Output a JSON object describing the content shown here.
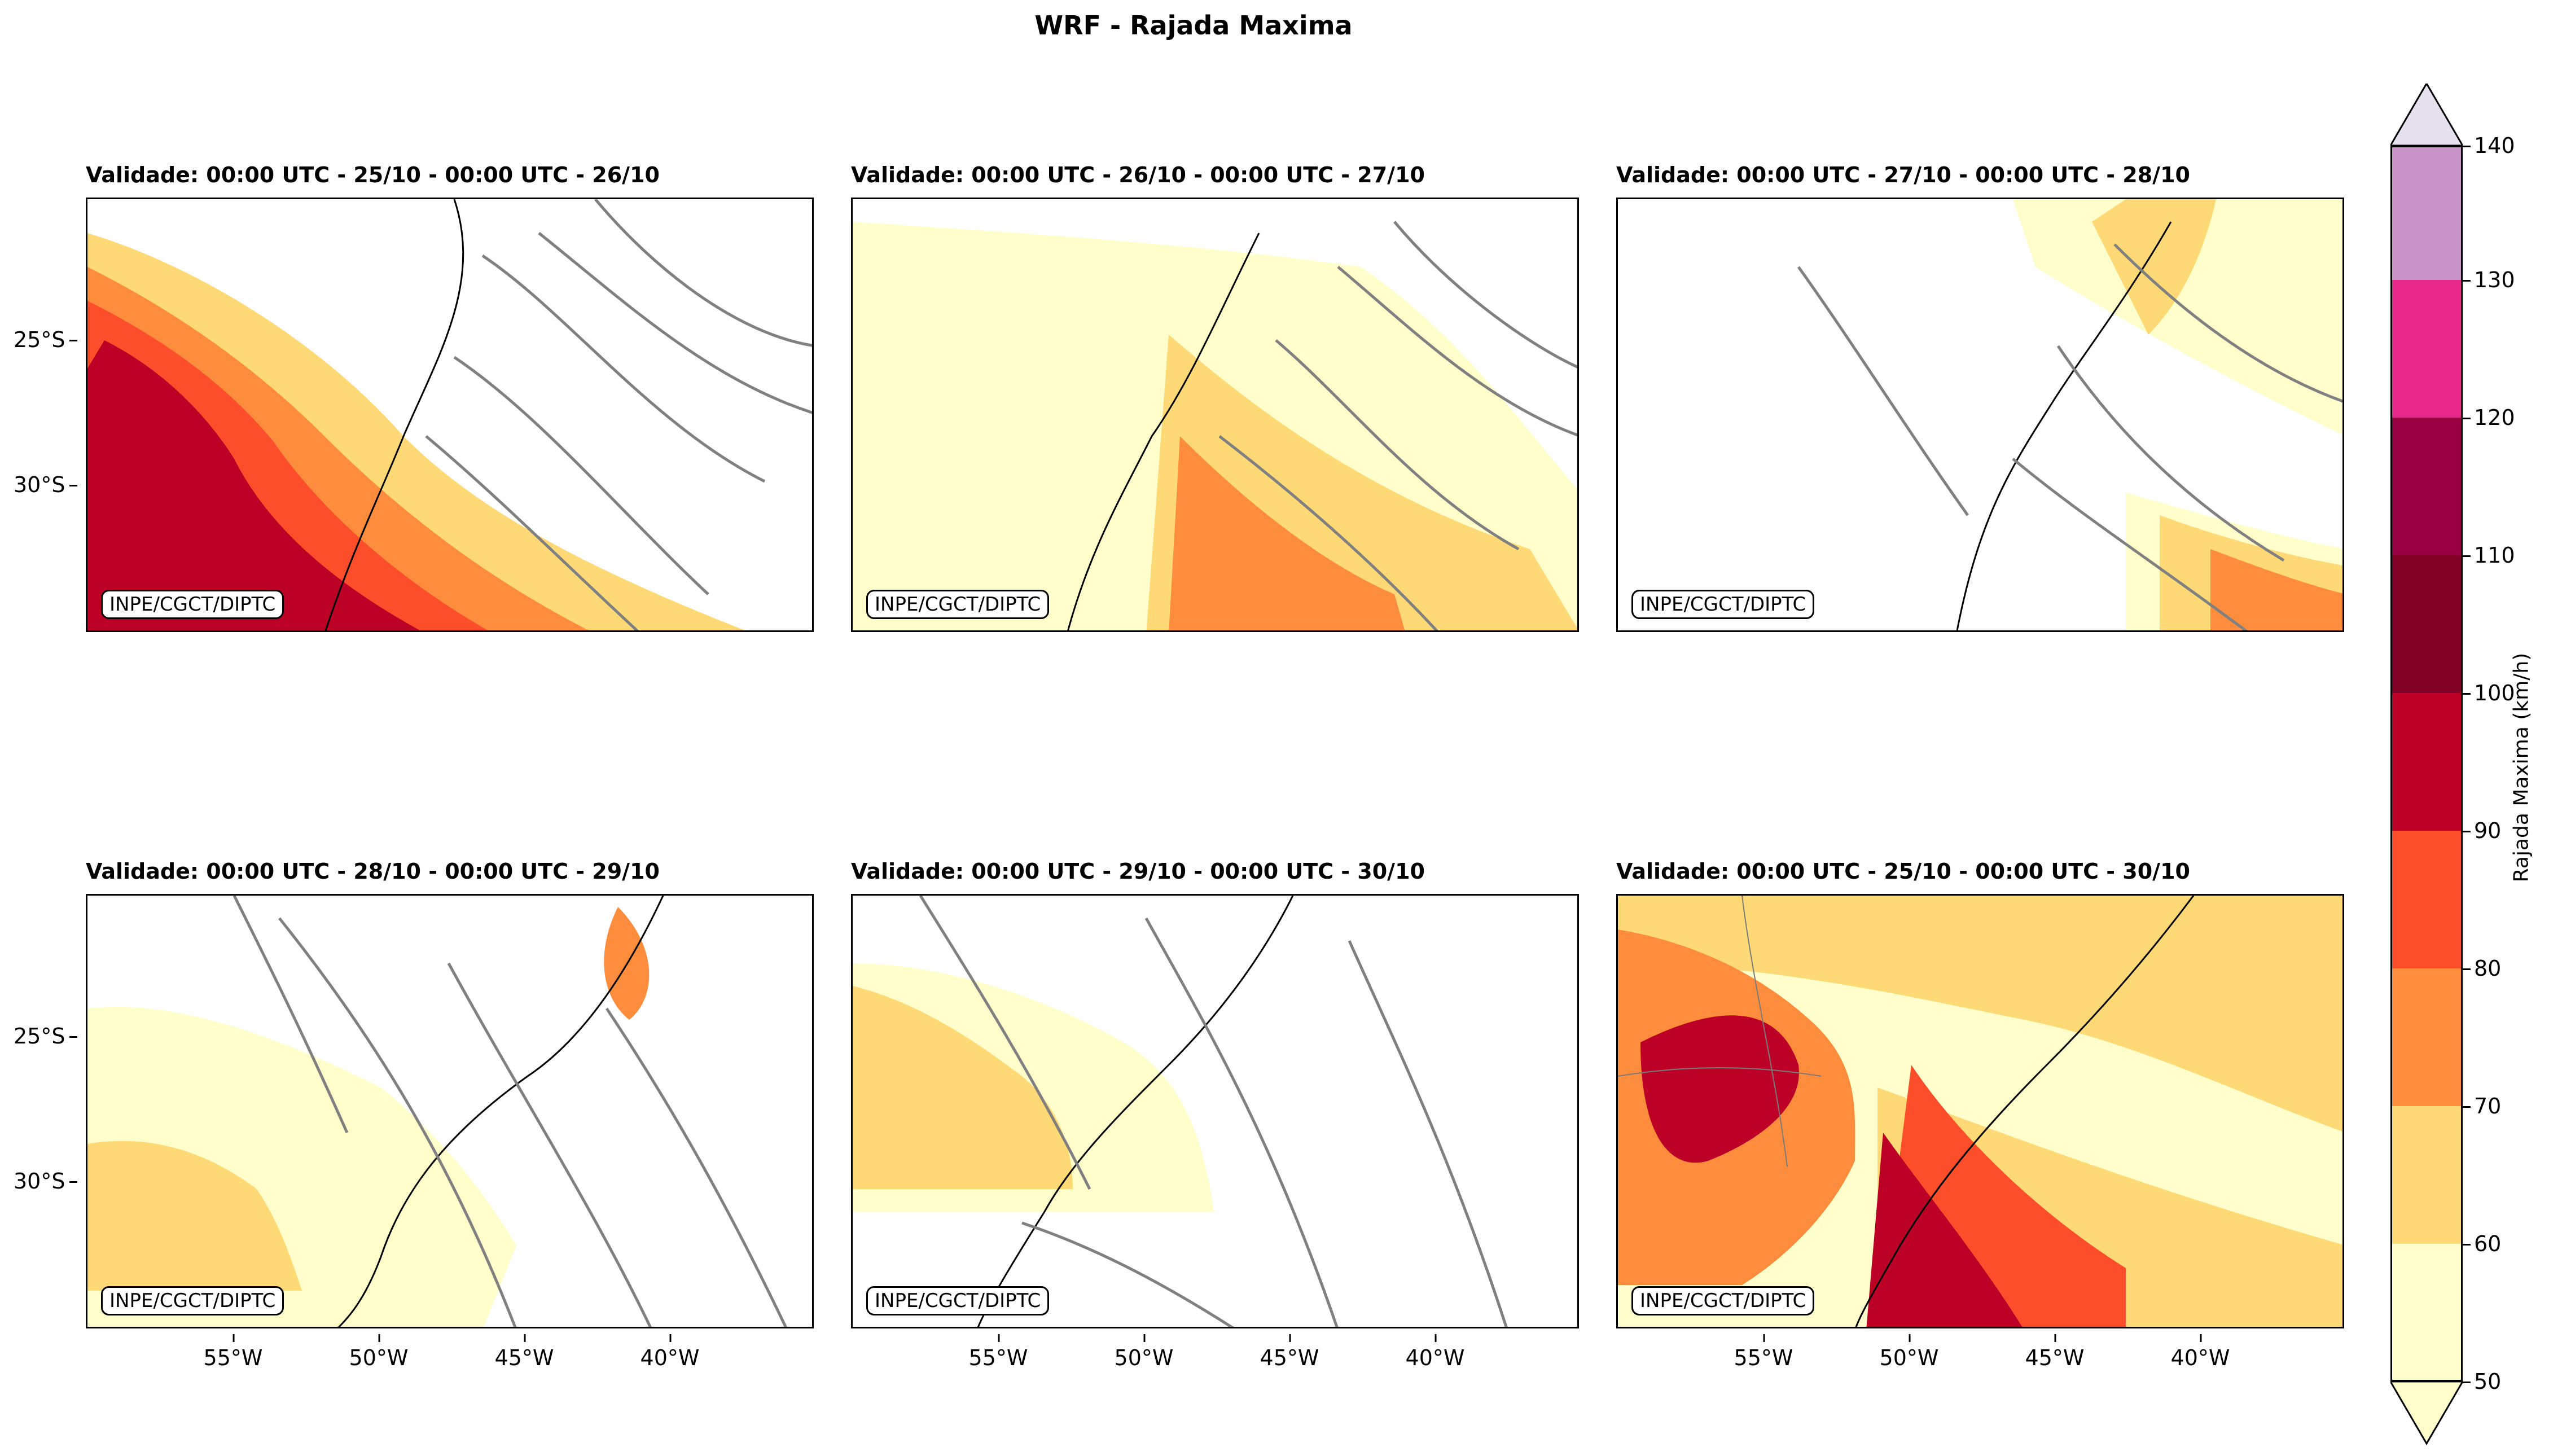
{
  "figure": {
    "title": "WRF - Rajada Maxima",
    "credit": "INPE/CGCT/DIPTC"
  },
  "panels": [
    {
      "title": "Validade: 00:00 UTC - 25/10 - 00:00 UTC - 26/10"
    },
    {
      "title": "Validade: 00:00 UTC - 26/10 - 00:00 UTC - 27/10"
    },
    {
      "title": "Validade: 00:00 UTC - 27/10 - 00:00 UTC - 28/10"
    },
    {
      "title": "Validade: 00:00 UTC - 28/10 - 00:00 UTC - 29/10"
    },
    {
      "title": "Validade: 00:00 UTC - 29/10 - 00:00 UTC - 30/10"
    },
    {
      "title": "Validade: 00:00 UTC - 25/10 - 00:00 UTC - 30/10"
    }
  ],
  "axes": {
    "lat_ticks": [
      "25°S",
      "30°S"
    ],
    "lon_ticks": [
      "55°W",
      "50°W",
      "45°W",
      "40°W"
    ]
  },
  "colorbar": {
    "label": "Rajada Maxima (km/h)",
    "ticks": [
      "50",
      "60",
      "70",
      "80",
      "90",
      "100",
      "110",
      "120",
      "130",
      "140"
    ],
    "colors": [
      "#ffffcc",
      "#fed976",
      "#fd8d3c",
      "#fc4e2a",
      "#bd0026",
      "#800026",
      "#980043",
      "#e7298a",
      "#c994c7",
      "#e7e1ef"
    ]
  }
}
